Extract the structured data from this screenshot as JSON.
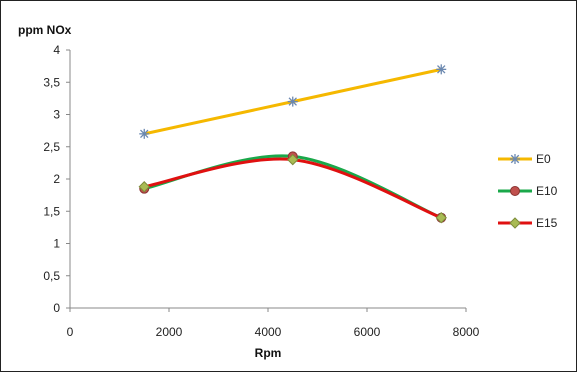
{
  "chart_data": {
    "type": "line",
    "title": "",
    "ylabel": "ppm NOx",
    "xlabel": "Rpm",
    "xlim": [
      0,
      8000
    ],
    "ylim": [
      0,
      4
    ],
    "xticks": [
      0,
      2000,
      4000,
      6000,
      8000
    ],
    "xtick_labels": [
      "0",
      "2000",
      "4000",
      "6000",
      "8000"
    ],
    "yticks": [
      0,
      0.5,
      1,
      1.5,
      2,
      2.5,
      3,
      3.5,
      4
    ],
    "ytick_labels": [
      "0",
      "0,5",
      "1",
      "1,5",
      "2",
      "2,5",
      "3",
      "3,5",
      "4"
    ],
    "grid": false,
    "legend_position": "right",
    "series": [
      {
        "name": "E0",
        "x": [
          1500,
          4500,
          7500
        ],
        "y": [
          2.7,
          3.2,
          3.7
        ],
        "color": "#f5b800",
        "marker": "asterisk",
        "smooth": false
      },
      {
        "name": "E10",
        "x": [
          1500,
          4500,
          7500
        ],
        "y": [
          1.85,
          2.35,
          1.4
        ],
        "color": "#1aa84a",
        "marker": "circle",
        "smooth": true
      },
      {
        "name": "E15",
        "x": [
          1500,
          4500,
          7500
        ],
        "y": [
          1.88,
          2.3,
          1.4
        ],
        "color": "#e01010",
        "marker": "diamond",
        "smooth": true
      }
    ]
  }
}
